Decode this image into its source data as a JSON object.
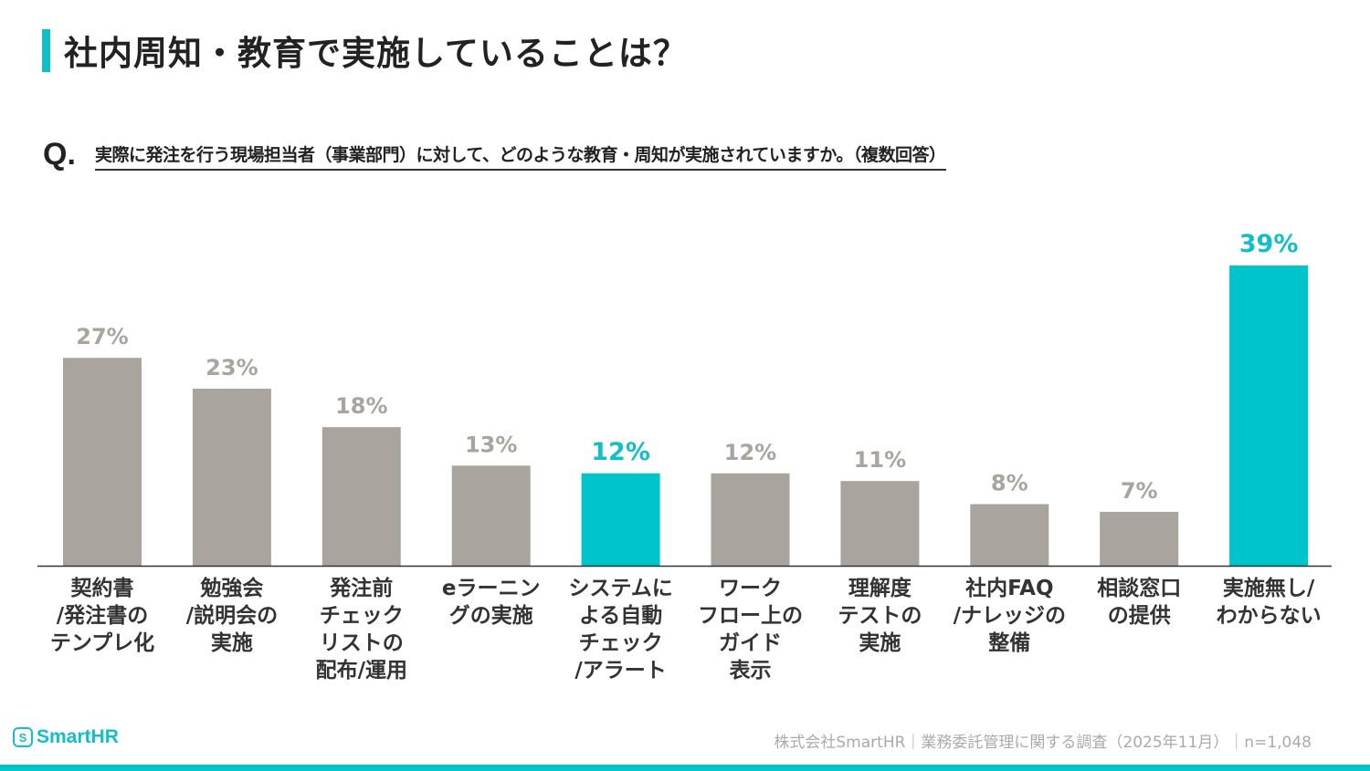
{
  "header": {
    "title": "社内周知・教育で実施していることは？"
  },
  "question": {
    "mark": "Q.",
    "text": "実際に発注を行う現場担当者（事業部門）に対して、どのような教育・周知が実施されていますか。（複数回答）"
  },
  "chart_data": {
    "type": "bar",
    "categories": [
      [
        "契約書",
        "/発注書の",
        "テンプレ化"
      ],
      [
        "勉強会",
        "/説明会の",
        "実施"
      ],
      [
        "発注前",
        "チェック",
        "リストの",
        "配布/運用"
      ],
      [
        "eラーニン",
        "グの実施"
      ],
      [
        "システムに",
        "よる自動",
        "チェック",
        "/アラート"
      ],
      [
        "ワーク",
        "フロー上の",
        "ガイド",
        "表示"
      ],
      [
        "理解度",
        "テストの",
        "実施"
      ],
      [
        "社内FAQ",
        "/ナレッジの",
        "整備"
      ],
      [
        "相談窓口",
        "の提供"
      ],
      [
        "実施無し/",
        "わからない"
      ]
    ],
    "values": [
      27,
      23,
      18,
      13,
      12,
      12,
      11,
      8,
      7,
      39
    ],
    "data_labels": [
      "27%",
      "23%",
      "18%",
      "13%",
      "12%",
      "12%",
      "11%",
      "8%",
      "7%",
      "39%"
    ],
    "highlighted": [
      4,
      9
    ],
    "ylim": [
      0,
      39
    ],
    "grid": false,
    "colors": {
      "default": "#a9a49e",
      "highlight": "#00c4cc",
      "default_label": "#a9a49e",
      "highlight_label": "#12bfc9"
    }
  },
  "footer": {
    "logo": "SmartHR",
    "logo_icon": "S",
    "source": "株式会社SmartHR｜業務委託管理に関する調査（2025年11月）｜n=1,048"
  }
}
